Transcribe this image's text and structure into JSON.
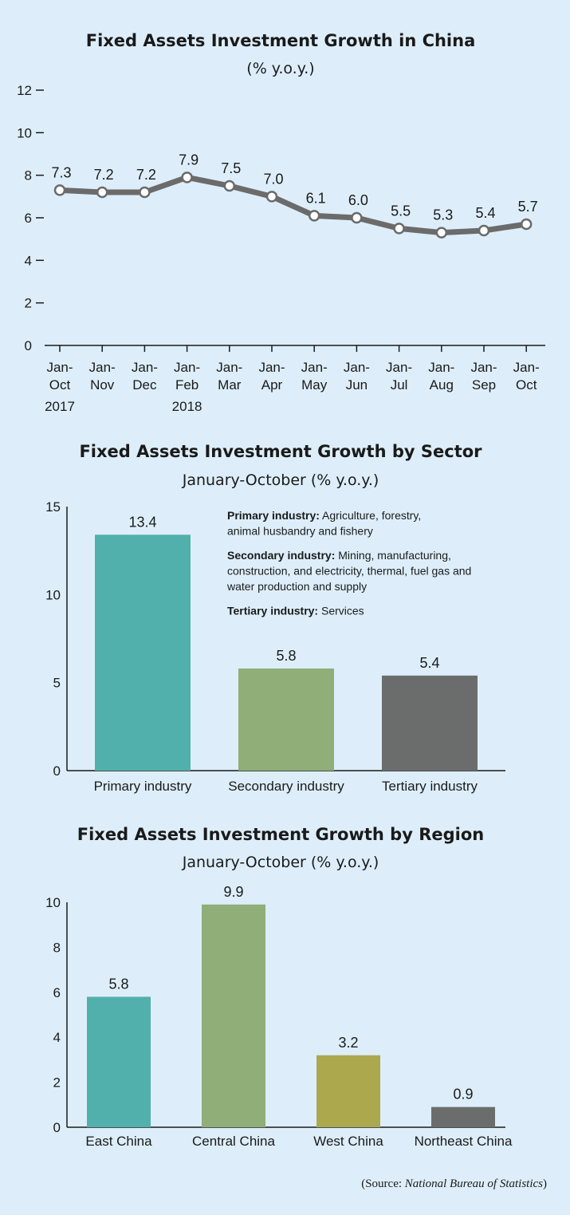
{
  "colors": {
    "line": "#6b6b6b",
    "teal": "#52b0ac",
    "green": "#8fae78",
    "gray": "#6b6d6c",
    "olive": "#aca84e",
    "axis": "#1a1a1a"
  },
  "chart_data": [
    {
      "type": "line",
      "title": "Fixed Assets Investment Growth in China",
      "subtitle": "(% y.o.y.)",
      "categories": [
        [
          "Jan-",
          "Oct",
          "2017"
        ],
        [
          "Jan-",
          "Nov",
          ""
        ],
        [
          "Jan-",
          "Dec",
          ""
        ],
        [
          "Jan-",
          "Feb",
          "2018"
        ],
        [
          "Jan-",
          "Mar",
          ""
        ],
        [
          "Jan-",
          "Apr",
          ""
        ],
        [
          "Jan-",
          "May",
          ""
        ],
        [
          "Jan-",
          "Jun",
          ""
        ],
        [
          "Jan-",
          "Jul",
          ""
        ],
        [
          "Jan-",
          "Aug",
          ""
        ],
        [
          "Jan-",
          "Sep",
          ""
        ],
        [
          "Jan-",
          "Oct",
          ""
        ]
      ],
      "values": [
        7.3,
        7.2,
        7.2,
        7.9,
        7.5,
        7.0,
        6.1,
        6.0,
        5.5,
        5.3,
        5.4,
        5.7
      ],
      "labels": [
        "7.3",
        "7.2",
        "7.2",
        "7.9",
        "7.5",
        "7.0",
        "6.1",
        "6.0",
        "5.5",
        "5.3",
        "5.4",
        "5.7"
      ],
      "yticks": [
        "0",
        "2",
        "4",
        "6",
        "8",
        "10",
        "12"
      ],
      "ylim": [
        0,
        12
      ],
      "grid": false
    },
    {
      "type": "bar",
      "title": "Fixed Assets Investment Growth by Sector",
      "subtitle": "January-October (% y.o.y.)",
      "categories": [
        "Primary industry",
        "Secondary industry",
        "Tertiary industry"
      ],
      "values": [
        13.4,
        5.8,
        5.4
      ],
      "labels": [
        "13.4",
        "5.8",
        "5.4"
      ],
      "colors": [
        "#52b0ac",
        "#8fae78",
        "#6b6d6c"
      ],
      "yticks": [
        "0",
        "5",
        "10",
        "15"
      ],
      "ylim": [
        0,
        15
      ],
      "grid": false,
      "notes": [
        {
          "term": "Primary industry:",
          "lines": [
            " Agriculture, forestry,",
            "animal husbandry and fishery"
          ]
        },
        {
          "term": "Secondary industry:",
          "lines": [
            " Mining, manufacturing,",
            "construction, and electricity, thermal, fuel gas and",
            "water production and supply"
          ]
        },
        {
          "term": "Tertiary industry:",
          "lines": [
            " Services"
          ]
        }
      ]
    },
    {
      "type": "bar",
      "title": "Fixed Assets Investment Growth by Region",
      "subtitle": "January-October (% y.o.y.)",
      "categories": [
        "East China",
        "Central China",
        "West China",
        "Northeast China"
      ],
      "values": [
        5.8,
        9.9,
        3.2,
        0.9
      ],
      "labels": [
        "5.8",
        "9.9",
        "3.2",
        "0.9"
      ],
      "colors": [
        "#52b0ac",
        "#8fae78",
        "#aca84e",
        "#6b6d6c"
      ],
      "yticks": [
        "0",
        "2",
        "4",
        "6",
        "8",
        "10"
      ],
      "ylim": [
        0,
        10
      ],
      "grid": false
    }
  ],
  "source": {
    "prefix": "(Source: ",
    "name": "National Bureau of Statistics",
    "suffix": ")"
  }
}
